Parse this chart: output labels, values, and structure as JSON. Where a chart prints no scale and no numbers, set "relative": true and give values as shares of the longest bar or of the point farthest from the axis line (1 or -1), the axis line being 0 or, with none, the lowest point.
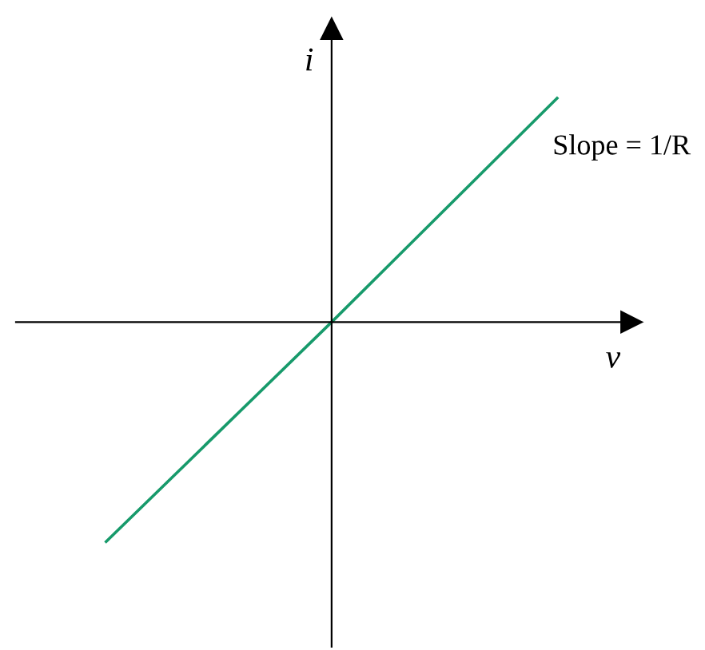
{
  "chart_data": {
    "type": "line",
    "relative": true,
    "xlabel": "v",
    "ylabel": "i",
    "categories": [
      null,
      null,
      null
    ],
    "series": [
      {
        "color": "#179a6b",
        "values": [
          -0.98,
          0,
          1
        ]
      }
    ],
    "annotations": [
      "Slope = 1/R"
    ],
    "legend": false,
    "marker": "none",
    "line_style": "solid"
  }
}
